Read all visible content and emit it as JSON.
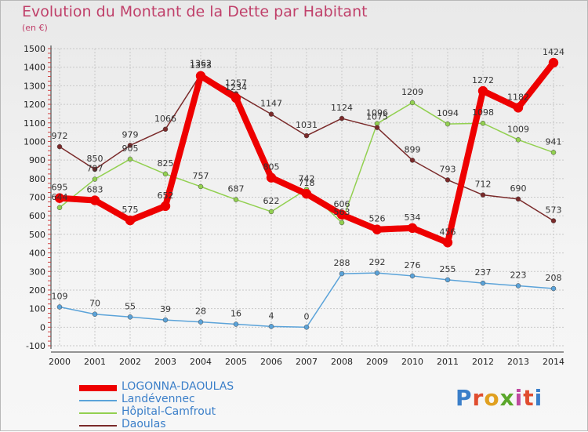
{
  "title": "Evolution du Montant de la Dette par Habitant",
  "subtitle": "(en €)",
  "logo": {
    "text": "Proxiti",
    "colors": [
      "#3b7fc9",
      "#e04d2f",
      "#e0a020",
      "#5aa72b",
      "#c04aa0",
      "#e04d2f",
      "#3b7fc9"
    ]
  },
  "chart_data": {
    "type": "line",
    "title": "Evolution du Montant de la Dette par Habitant",
    "ylabel": "(en €)",
    "xlabel": "",
    "x": [
      2000,
      2001,
      2002,
      2003,
      2004,
      2005,
      2006,
      2007,
      2008,
      2009,
      2010,
      2011,
      2012,
      2013,
      2014
    ],
    "ylim": [
      -100,
      1500
    ],
    "yticks": [
      -100,
      0,
      100,
      200,
      300,
      400,
      500,
      600,
      700,
      800,
      900,
      1000,
      1100,
      1200,
      1300,
      1400,
      1500
    ],
    "grid": true,
    "legend_position": "bottom-left",
    "series": [
      {
        "name": "LOGONNA-DAOULAS",
        "color": "#ee0000",
        "values": [
          695,
          683,
          575,
          652,
          1353,
          1234,
          805,
          718,
          606,
          526,
          534,
          456,
          1272,
          1182,
          1424
        ]
      },
      {
        "name": "Landévennec",
        "color": "#5ba3d9",
        "values": [
          109,
          70,
          55,
          39,
          28,
          16,
          4,
          0,
          288,
          292,
          276,
          255,
          237,
          223,
          208
        ]
      },
      {
        "name": "Hôpital-Camfrout",
        "color": "#92d050",
        "values": [
          644,
          797,
          905,
          825,
          757,
          687,
          622,
          742,
          563,
          1096,
          1209,
          1094,
          1098,
          1009,
          941
        ]
      },
      {
        "name": "Daoulas",
        "color": "#7a2a2a",
        "values": [
          972,
          850,
          979,
          1066,
          1362,
          1257,
          1147,
          1031,
          1124,
          1075,
          899,
          793,
          712,
          690,
          573
        ]
      }
    ]
  }
}
